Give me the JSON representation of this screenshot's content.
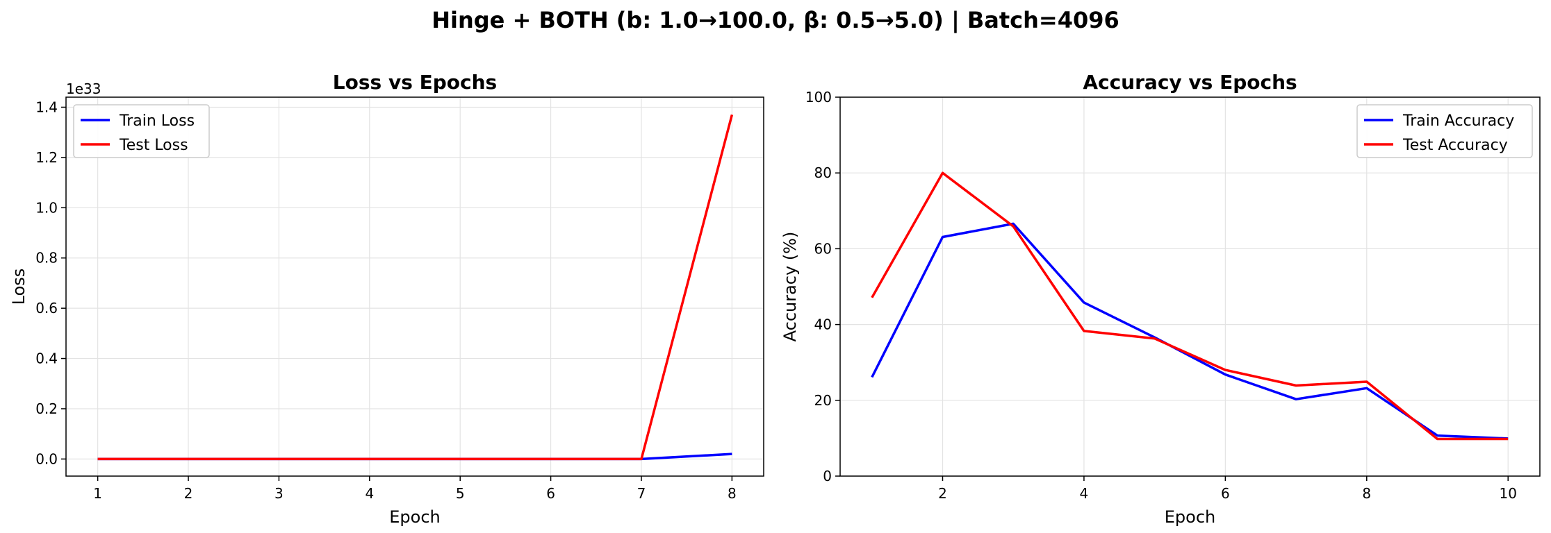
{
  "figure": {
    "title": "Hinge + BOTH (b: 1.0→100.0, β: 0.5→5.0) | Batch=4096"
  },
  "chart_data": [
    {
      "type": "line",
      "title": "Loss vs Epochs",
      "xlabel": "Epoch",
      "ylabel": "Loss",
      "offset_text": "1e33",
      "x": [
        1,
        2,
        3,
        4,
        5,
        6,
        7,
        8
      ],
      "xlim": [
        0.65,
        8.35
      ],
      "ylim": [
        -0.068,
        1.44
      ],
      "xticks": [
        1,
        2,
        3,
        4,
        5,
        6,
        7,
        8
      ],
      "yticks": [
        0.0,
        0.2,
        0.4,
        0.6,
        0.8,
        1.0,
        1.2,
        1.4
      ],
      "ytick_labels": [
        "0.0",
        "0.2",
        "0.4",
        "0.6",
        "0.8",
        "1.0",
        "1.2",
        "1.4"
      ],
      "grid": true,
      "legend_position": "upper-left",
      "series": [
        {
          "name": "Train Loss",
          "color": "#0000ff",
          "values": [
            0,
            0,
            0,
            0,
            0,
            0,
            0,
            0.02
          ]
        },
        {
          "name": "Test Loss",
          "color": "#ff0000",
          "values": [
            0,
            0,
            0,
            0,
            0,
            0,
            0,
            1.37
          ]
        }
      ]
    },
    {
      "type": "line",
      "title": "Accuracy vs Epochs",
      "xlabel": "Epoch",
      "ylabel": "Accuracy (%)",
      "x": [
        1,
        2,
        3,
        4,
        5,
        6,
        7,
        8,
        9,
        10
      ],
      "xlim": [
        0.55,
        10.45
      ],
      "ylim": [
        0,
        100
      ],
      "xticks": [
        2,
        4,
        6,
        8,
        10
      ],
      "yticks": [
        0,
        20,
        40,
        60,
        80,
        100
      ],
      "ytick_labels": [
        "0",
        "20",
        "40",
        "60",
        "80",
        "100"
      ],
      "grid": true,
      "legend_position": "upper-right",
      "series": [
        {
          "name": "Train Accuracy",
          "color": "#0000ff",
          "values": [
            26.1,
            63.1,
            66.6,
            45.8,
            36.6,
            26.8,
            20.3,
            23.2,
            10.7,
            9.9
          ]
        },
        {
          "name": "Test Accuracy",
          "color": "#ff0000",
          "values": [
            47.1,
            80.0,
            65.9,
            38.3,
            36.3,
            28.0,
            23.9,
            24.9,
            9.8,
            9.8
          ]
        }
      ]
    }
  ]
}
